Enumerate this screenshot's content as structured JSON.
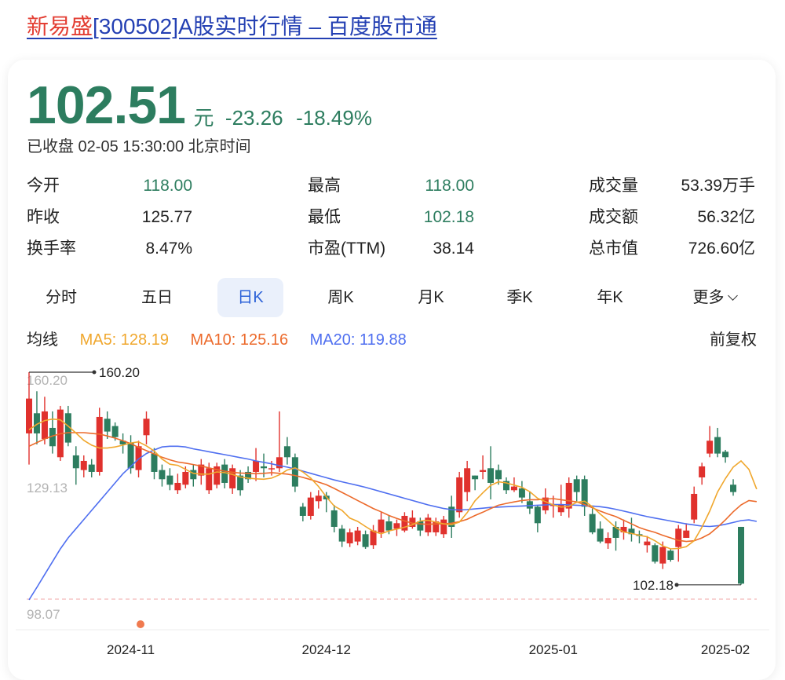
{
  "header": {
    "title_highlight": "新易盛",
    "title_rest": "[300502]A股实时行情 – 百度股市通"
  },
  "quote": {
    "price": "102.51",
    "unit": "元",
    "change": "-23.26",
    "change_pct": "-18.49%",
    "status": "已收盘 02-05 15:30:00 北京时间"
  },
  "stats": [
    {
      "label": "今开",
      "value": "118.00",
      "color": "#2d7d5f"
    },
    {
      "label": "最高",
      "value": "118.00",
      "color": "#2d7d5f"
    },
    {
      "label": "成交量",
      "value": "53.39万手",
      "color": "#222222"
    },
    {
      "label": "昨收",
      "value": "125.77",
      "color": "#222222"
    },
    {
      "label": "最低",
      "value": "102.18",
      "color": "#2d7d5f"
    },
    {
      "label": "成交额",
      "value": "56.32亿",
      "color": "#222222"
    },
    {
      "label": "换手率",
      "value": "8.47%",
      "color": "#222222"
    },
    {
      "label": "市盈(TTM)",
      "value": "38.14",
      "color": "#222222"
    },
    {
      "label": "总市值",
      "value": "726.60亿",
      "color": "#222222"
    }
  ],
  "tabs": [
    "分时",
    "五日",
    "日K",
    "周K",
    "月K",
    "季K",
    "年K",
    "更多"
  ],
  "active_tab": "日K",
  "ma": {
    "label": "均线",
    "ma5": "MA5: 128.19",
    "ma10": "MA10: 125.16",
    "ma20": "MA20: 119.88",
    "adjust": "前复权",
    "colors": {
      "ma5": "#f0a72d",
      "ma10": "#ec6a2b",
      "ma20": "#4f6ff0"
    }
  },
  "chart_data": {
    "type": "candlestick",
    "colors": {
      "up": "#e0312d",
      "down": "#2d7d5f"
    },
    "y_axis_labels": [
      "160.20",
      "129.13",
      "98.07"
    ],
    "ylim": [
      98.07,
      160.2
    ],
    "max_label": "160.20",
    "min_label": "102.18",
    "x_tick_labels": [
      "2024-11",
      "2024-12",
      "2025-01",
      "2025-02"
    ],
    "candles": [
      {
        "o": 143.5,
        "c": 153.0,
        "h": 160.2,
        "l": 135.0
      },
      {
        "o": 149.0,
        "c": 143.5,
        "h": 155.0,
        "l": 140.5
      },
      {
        "o": 142.0,
        "c": 149.5,
        "h": 153.5,
        "l": 140.5
      },
      {
        "o": 145.0,
        "c": 140.0,
        "h": 149.5,
        "l": 138.0
      },
      {
        "o": 137.0,
        "c": 150.0,
        "h": 151.0,
        "l": 136.0
      },
      {
        "o": 149.0,
        "c": 141.0,
        "h": 151.0,
        "l": 140.0
      },
      {
        "o": 137.5,
        "c": 134.0,
        "h": 140.0,
        "l": 129.5
      },
      {
        "o": 133.5,
        "c": 136.0,
        "h": 137.5,
        "l": 131.5
      },
      {
        "o": 135.0,
        "c": 133.0,
        "h": 136.5,
        "l": 131.5
      },
      {
        "o": 133.0,
        "c": 148.0,
        "h": 150.5,
        "l": 132.0
      },
      {
        "o": 147.5,
        "c": 144.0,
        "h": 149.5,
        "l": 142.0
      },
      {
        "o": 145.5,
        "c": 142.5,
        "h": 146.5,
        "l": 141.5
      },
      {
        "o": 141.5,
        "c": 140.5,
        "h": 143.5,
        "l": 138.0
      },
      {
        "o": 141.0,
        "c": 134.0,
        "h": 143.0,
        "l": 132.5
      },
      {
        "o": 133.5,
        "c": 140.0,
        "h": 141.5,
        "l": 131.5
      },
      {
        "o": 143.0,
        "c": 147.5,
        "h": 149.5,
        "l": 140.5
      },
      {
        "o": 138.0,
        "c": 133.0,
        "h": 139.5,
        "l": 131.0
      },
      {
        "o": 133.5,
        "c": 131.0,
        "h": 135.0,
        "l": 129.0
      },
      {
        "o": 132.0,
        "c": 129.5,
        "h": 134.0,
        "l": 128.0
      },
      {
        "o": 128.0,
        "c": 130.0,
        "h": 132.5,
        "l": 127.0
      },
      {
        "o": 129.5,
        "c": 133.0,
        "h": 134.5,
        "l": 128.5
      },
      {
        "o": 133.5,
        "c": 131.0,
        "h": 135.0,
        "l": 129.0
      },
      {
        "o": 132.0,
        "c": 135.0,
        "h": 136.5,
        "l": 129.5
      },
      {
        "o": 128.0,
        "c": 134.0,
        "h": 135.5,
        "l": 127.0
      },
      {
        "o": 129.5,
        "c": 134.5,
        "h": 135.5,
        "l": 128.5
      },
      {
        "o": 135.0,
        "c": 130.0,
        "h": 136.5,
        "l": 128.5
      },
      {
        "o": 128.5,
        "c": 134.0,
        "h": 135.0,
        "l": 127.0
      },
      {
        "o": 132.0,
        "c": 128.0,
        "h": 133.5,
        "l": 126.5
      },
      {
        "o": 133.0,
        "c": 131.0,
        "h": 134.5,
        "l": 130.0
      },
      {
        "o": 133.0,
        "c": 136.0,
        "h": 139.5,
        "l": 130.5
      },
      {
        "o": 134.5,
        "c": 134.0,
        "h": 138.0,
        "l": 131.5
      },
      {
        "o": 134.0,
        "c": 134.0,
        "h": 136.0,
        "l": 132.0
      },
      {
        "o": 134.0,
        "c": 137.0,
        "h": 149.5,
        "l": 133.0
      },
      {
        "o": 140.0,
        "c": 137.0,
        "h": 142.5,
        "l": 135.0
      },
      {
        "o": 137.0,
        "c": 129.0,
        "h": 138.0,
        "l": 127.5
      },
      {
        "o": 123.5,
        "c": 121.0,
        "h": 124.5,
        "l": 119.5
      },
      {
        "o": 121.0,
        "c": 126.0,
        "h": 127.5,
        "l": 120.0
      },
      {
        "o": 125.0,
        "c": 126.5,
        "h": 128.0,
        "l": 123.0
      },
      {
        "o": 126.5,
        "c": 125.5,
        "h": 127.5,
        "l": 122.0
      },
      {
        "o": 122.5,
        "c": 118.0,
        "h": 124.0,
        "l": 116.5
      },
      {
        "o": 117.5,
        "c": 114.0,
        "h": 118.5,
        "l": 112.5
      },
      {
        "o": 113.5,
        "c": 116.5,
        "h": 117.5,
        "l": 112.5
      },
      {
        "o": 114.0,
        "c": 117.0,
        "h": 118.0,
        "l": 113.0
      },
      {
        "o": 116.0,
        "c": 112.5,
        "h": 117.0,
        "l": 112.0
      },
      {
        "o": 113.0,
        "c": 117.0,
        "h": 118.5,
        "l": 112.0
      },
      {
        "o": 116.5,
        "c": 120.0,
        "h": 122.0,
        "l": 115.0
      },
      {
        "o": 119.5,
        "c": 117.0,
        "h": 121.0,
        "l": 116.0
      },
      {
        "o": 117.5,
        "c": 119.0,
        "h": 120.0,
        "l": 115.5
      },
      {
        "o": 117.0,
        "c": 121.0,
        "h": 122.0,
        "l": 116.5
      },
      {
        "o": 118.0,
        "c": 120.5,
        "h": 122.5,
        "l": 117.5
      },
      {
        "o": 119.5,
        "c": 117.0,
        "h": 120.5,
        "l": 115.5
      },
      {
        "o": 116.5,
        "c": 120.5,
        "h": 121.5,
        "l": 115.5
      },
      {
        "o": 116.5,
        "c": 119.5,
        "h": 120.5,
        "l": 115.5
      },
      {
        "o": 116.0,
        "c": 120.0,
        "h": 121.0,
        "l": 115.0
      },
      {
        "o": 123.5,
        "c": 118.0,
        "h": 126.5,
        "l": 115.0
      },
      {
        "o": 122.0,
        "c": 131.5,
        "h": 133.0,
        "l": 120.5
      },
      {
        "o": 127.5,
        "c": 134.0,
        "h": 136.0,
        "l": 125.0
      },
      {
        "o": 132.0,
        "c": 131.0,
        "h": 132.0,
        "l": 128.0
      },
      {
        "o": 133.0,
        "c": 133.5,
        "h": 137.5,
        "l": 131.0
      },
      {
        "o": 134.0,
        "c": 130.0,
        "h": 140.0,
        "l": 125.5
      },
      {
        "o": 133.5,
        "c": 131.0,
        "h": 135.0,
        "l": 129.5
      },
      {
        "o": 130.5,
        "c": 128.0,
        "h": 131.5,
        "l": 127.0
      },
      {
        "o": 128.0,
        "c": 129.0,
        "h": 131.5,
        "l": 127.5
      },
      {
        "o": 128.5,
        "c": 126.0,
        "h": 130.5,
        "l": 124.5
      },
      {
        "o": 125.0,
        "c": 123.0,
        "h": 127.5,
        "l": 121.5
      },
      {
        "o": 123.5,
        "c": 119.0,
        "h": 124.0,
        "l": 116.5
      },
      {
        "o": 122.5,
        "c": 126.0,
        "h": 128.5,
        "l": 121.5
      },
      {
        "o": 124.0,
        "c": 124.0,
        "h": 126.5,
        "l": 120.5
      },
      {
        "o": 122.0,
        "c": 124.0,
        "h": 129.5,
        "l": 121.0
      },
      {
        "o": 123.0,
        "c": 130.0,
        "h": 131.5,
        "l": 120.5
      },
      {
        "o": 131.0,
        "c": 127.5,
        "h": 132.0,
        "l": 125.0
      },
      {
        "o": 131.0,
        "c": 123.5,
        "h": 132.0,
        "l": 121.0
      },
      {
        "o": 121.5,
        "c": 116.5,
        "h": 123.0,
        "l": 116.0
      },
      {
        "o": 117.5,
        "c": 114.0,
        "h": 119.5,
        "l": 113.5
      },
      {
        "o": 113.5,
        "c": 115.0,
        "h": 116.5,
        "l": 112.0
      },
      {
        "o": 118.0,
        "c": 115.0,
        "h": 119.5,
        "l": 111.5
      },
      {
        "o": 116.5,
        "c": 118.0,
        "h": 120.0,
        "l": 114.5
      },
      {
        "o": 117.5,
        "c": 116.0,
        "h": 120.5,
        "l": 114.0
      },
      {
        "o": 116.0,
        "c": 115.5,
        "h": 117.0,
        "l": 113.5
      },
      {
        "o": 113.0,
        "c": 114.0,
        "h": 115.5,
        "l": 111.0
      },
      {
        "o": 113.0,
        "c": 108.5,
        "h": 113.5,
        "l": 108.0
      },
      {
        "o": 108.0,
        "c": 112.5,
        "h": 114.0,
        "l": 106.5
      },
      {
        "o": 111.5,
        "c": 109.0,
        "h": 112.0,
        "l": 108.5
      },
      {
        "o": 112.5,
        "c": 117.5,
        "h": 118.5,
        "l": 108.5
      },
      {
        "o": 115.0,
        "c": 117.0,
        "h": 119.0,
        "l": 115.0
      },
      {
        "o": 120.0,
        "c": 127.0,
        "h": 129.0,
        "l": 119.0
      },
      {
        "o": 131.5,
        "c": 134.5,
        "h": 135.5,
        "l": 129.5
      },
      {
        "o": 138.0,
        "c": 141.5,
        "h": 145.5,
        "l": 137.0
      },
      {
        "o": 142.5,
        "c": 138.0,
        "h": 145.0,
        "l": 137.0
      },
      {
        "o": 138.5,
        "c": 137.0,
        "h": 139.0,
        "l": 135.5
      },
      {
        "o": 129.5,
        "c": 127.5,
        "h": 131.0,
        "l": 126.5
      },
      {
        "o": 118.0,
        "c": 102.5,
        "h": 118.0,
        "l": 102.2
      }
    ],
    "ma5": [
      144.5,
      146.0,
      147.0,
      147.4,
      147.2,
      145.5,
      143.6,
      141.6,
      140.3,
      139.5,
      139.5,
      139.8,
      140.3,
      140.9,
      141.2,
      140.1,
      138.7,
      136.5,
      135.1,
      134.8,
      133.7,
      132.6,
      132.4,
      132.4,
      133.0,
      132.8,
      132.3,
      131.6,
      131.3,
      131.1,
      131.0,
      131.3,
      132.2,
      133.5,
      134.1,
      133.0,
      131.3,
      129.0,
      126.2,
      123.7,
      122.5,
      120.4,
      119.5,
      118.1,
      116.8,
      116.1,
      116.9,
      117.4,
      117.9,
      118.6,
      119.6,
      119.8,
      119.3,
      118.8,
      118.6,
      119.3,
      121.9,
      125.1,
      127.3,
      129.3,
      130.3,
      130.0,
      129.4,
      128.8,
      127.6,
      125.8,
      124.9,
      124.0,
      123.4,
      123.6,
      124.7,
      125.0,
      123.5,
      121.5,
      119.7,
      117.8,
      116.6,
      116.2,
      115.7,
      115.3,
      114.2,
      112.8,
      112.0,
      112.1,
      112.6,
      114.2,
      117.9,
      122.3,
      127.5,
      131.2,
      134.3,
      136.0,
      133.7,
      128.3
    ],
    "ma10": [
      140.0,
      141.0,
      142.0,
      142.8,
      143.4,
      143.7,
      143.7,
      143.7,
      143.5,
      143.3,
      142.8,
      142.2,
      141.5,
      140.7,
      139.7,
      138.8,
      137.9,
      137.0,
      136.3,
      135.7,
      135.4,
      135.0,
      134.6,
      134.1,
      133.6,
      133.2,
      132.9,
      132.7,
      132.6,
      132.5,
      132.6,
      132.8,
      132.6,
      132.4,
      132.0,
      131.5,
      130.9,
      130.2,
      129.5,
      128.5,
      127.4,
      126.3,
      125.2,
      124.1,
      123.0,
      122.1,
      121.1,
      120.3,
      119.6,
      119.0,
      118.8,
      118.7,
      118.8,
      118.8,
      119.0,
      119.4,
      120.1,
      121.1,
      122.0,
      123.0,
      123.9,
      124.4,
      124.8,
      125.2,
      125.4,
      125.4,
      125.6,
      125.7,
      125.4,
      125.1,
      124.8,
      124.1,
      123.2,
      122.3,
      121.5,
      120.8,
      119.8,
      118.8,
      117.8,
      117.1,
      116.5,
      115.7,
      115.0,
      114.3,
      114.0,
      114.2,
      115.0,
      116.1,
      117.9,
      119.9,
      122.1,
      124.0,
      125.2,
      124.9
    ],
    "ma20": [
      98.1,
      101.5,
      105.0,
      108.5,
      112.0,
      115.0,
      117.5,
      120.0,
      122.5,
      125.0,
      127.5,
      130.0,
      132.5,
      134.5,
      136.5,
      138.0,
      139.0,
      139.8,
      140.0,
      140.0,
      139.8,
      139.3,
      138.9,
      138.5,
      138.1,
      137.7,
      137.3,
      136.9,
      136.5,
      136.0,
      135.6,
      135.2,
      134.7,
      134.3,
      133.8,
      133.2,
      132.6,
      132.0,
      131.4,
      130.8,
      130.3,
      129.8,
      129.3,
      128.8,
      128.2,
      127.6,
      127.0,
      126.4,
      125.8,
      125.2,
      124.6,
      124.0,
      123.5,
      123.0,
      122.7,
      122.6,
      122.7,
      122.9,
      123.1,
      123.3,
      123.4,
      123.5,
      123.6,
      123.7,
      123.8,
      123.9,
      124.0,
      124.1,
      124.1,
      124.0,
      123.9,
      123.8,
      123.7,
      123.5,
      123.2,
      122.8,
      122.3,
      121.8,
      121.3,
      120.8,
      120.4,
      120.0,
      119.6,
      119.2,
      118.8,
      118.5,
      118.2,
      118.1,
      118.3,
      118.7,
      119.2,
      119.7,
      119.9,
      119.5
    ]
  }
}
